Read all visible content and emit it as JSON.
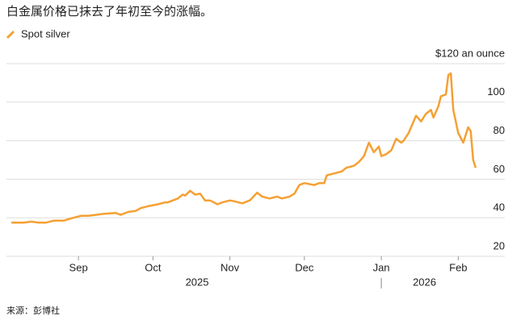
{
  "chart_data": {
    "type": "line",
    "title": "白金属价格已抹去了年初至今的涨幅。",
    "source": "来源：彭博社",
    "year_labels": [
      "2025",
      "2026"
    ],
    "series": [
      {
        "name": "Spot silver",
        "color": "#f5a033",
        "x": [
          0,
          5,
          8,
          11,
          14,
          17,
          21,
          25,
          28,
          31,
          34,
          37,
          42,
          44,
          47,
          50,
          52,
          55,
          59,
          62,
          63,
          67,
          69,
          70,
          72,
          74,
          76,
          78,
          80,
          83,
          85,
          88,
          90,
          93,
          96,
          99,
          101,
          104,
          107,
          109,
          112,
          114,
          116,
          118,
          122,
          124,
          126,
          127,
          130,
          133,
          135,
          138,
          140,
          142,
          144,
          146,
          148,
          149,
          151,
          153,
          155,
          157,
          158,
          160,
          163,
          165,
          167,
          169,
          170,
          172,
          173,
          175,
          176,
          177,
          178,
          180,
          182,
          184,
          185,
          186,
          187
        ],
        "values": [
          37.5,
          37.5,
          38,
          37.5,
          37.5,
          38.5,
          38.5,
          40,
          41,
          41,
          41.5,
          42,
          42.5,
          41.5,
          43,
          43.5,
          45,
          46,
          47,
          48,
          48,
          50,
          52,
          51.5,
          54,
          52,
          52.5,
          49,
          49,
          47,
          48,
          49,
          48.5,
          47.5,
          49,
          53,
          51,
          50,
          51,
          50,
          51,
          52.5,
          57,
          58,
          57,
          58,
          58,
          62,
          63,
          64,
          66,
          67,
          69,
          72,
          79,
          74,
          77,
          72,
          73,
          75,
          81,
          79,
          80,
          84,
          93,
          90,
          94,
          96,
          92,
          98,
          103,
          104,
          114,
          115,
          96,
          84,
          79,
          87,
          85,
          70,
          66
        ]
      }
    ],
    "xlim": [
      -2,
      189
    ],
    "xticks": [
      {
        "value": 27,
        "label": "Sep"
      },
      {
        "value": 57,
        "label": "Oct"
      },
      {
        "value": 88,
        "label": "Nov"
      },
      {
        "value": 118,
        "label": "Dec"
      },
      {
        "value": 149,
        "label": "Jan"
      },
      {
        "value": 180,
        "label": "Feb"
      }
    ],
    "ylim": [
      20,
      120
    ],
    "yticks": [
      20,
      40,
      60,
      80,
      100,
      {
        "value": 120,
        "label": "$120 an ounce"
      }
    ],
    "grid": true
  }
}
